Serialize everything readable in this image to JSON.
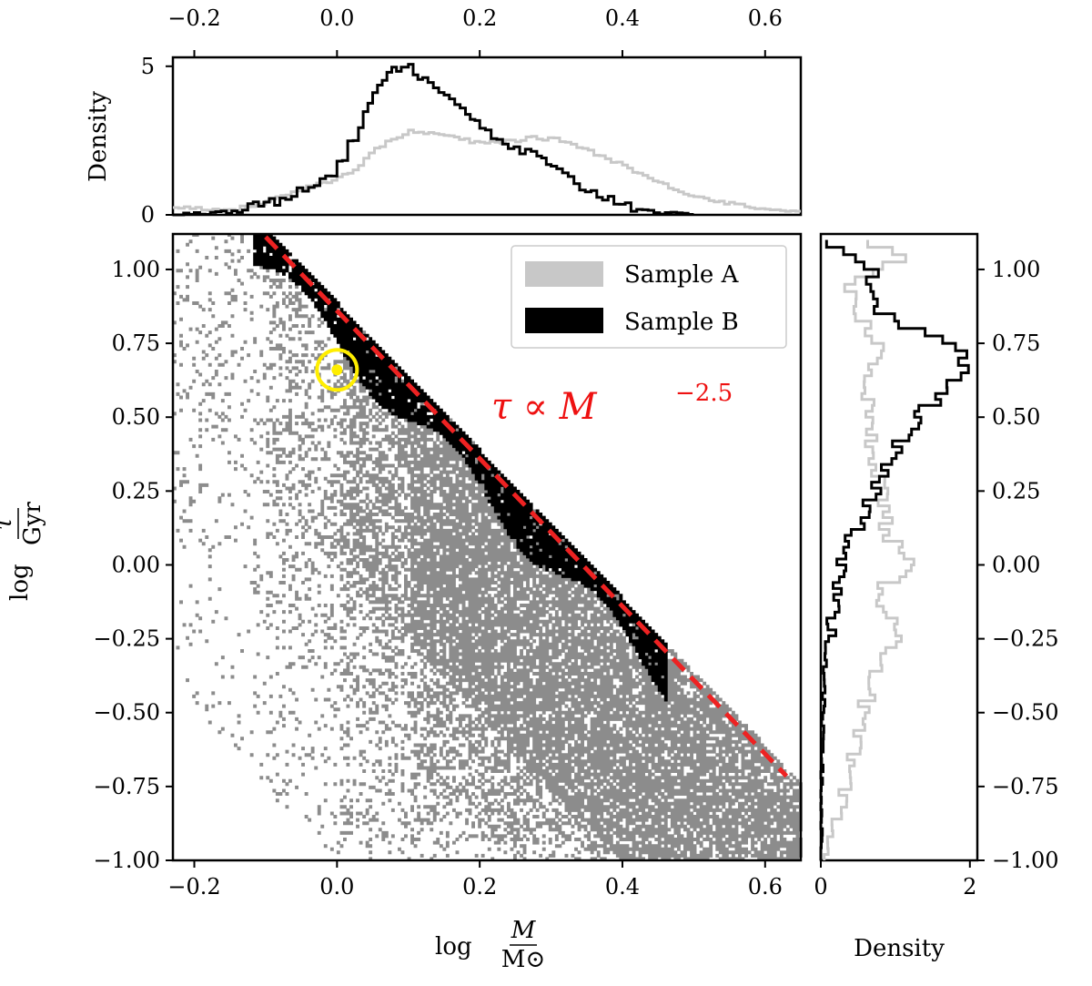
{
  "chart_data": [
    {
      "type": "heatmap",
      "panel": "main",
      "xlabel": "log M/M⊙",
      "ylabel": "log τ/Gyr",
      "xlim": [
        -0.23,
        0.65
      ],
      "ylim": [
        -1.0,
        1.12
      ],
      "xticks": [
        "−0.2",
        "0.0",
        "0.2",
        "0.4",
        "0.6"
      ],
      "xtick_values": [
        -0.2,
        0.0,
        0.2,
        0.4,
        0.6
      ],
      "yticks": [
        "−1.00",
        "−0.75",
        "−0.50",
        "−0.25",
        "0.00",
        "0.25",
        "0.50",
        "0.75",
        "1.00"
      ],
      "ytick_values": [
        -1.0,
        -0.75,
        -0.5,
        -0.25,
        0.0,
        0.25,
        0.5,
        0.75,
        1.0
      ],
      "series": [
        {
          "name": "Sample A",
          "color": "#8c8c8c",
          "legend_color": "#c8c8c8",
          "band": {
            "slope": -2.5,
            "intercept_top": 0.88,
            "spread_below": 1.0
          }
        },
        {
          "name": "Sample B",
          "color": "#000000",
          "band": {
            "slope": -2.5,
            "intercept_top": 0.86,
            "width": 0.12,
            "x_range": [
              -0.12,
              0.46
            ]
          }
        }
      ],
      "relation_line": {
        "slope": -2.5,
        "intercept": 0.86,
        "x_range": [
          -0.1,
          0.63
        ],
        "color": "#ee2222",
        "style": "dashed"
      },
      "sun_marker": {
        "x": 0.0,
        "y": 0.66,
        "color": "#ffee00"
      },
      "annotation": {
        "base": "τ  ∝  M",
        "exponent": "−2.5"
      },
      "legend": {
        "placement": "top-right",
        "entries": [
          "Sample A",
          "Sample B"
        ]
      },
      "grid": false
    },
    {
      "type": "line",
      "panel": "top-marginal",
      "ylabel": "Density",
      "xlim": [
        -0.23,
        0.65
      ],
      "ylim": [
        0,
        5.3
      ],
      "xticks": [
        "−0.2",
        "0.0",
        "0.2",
        "0.4",
        "0.6"
      ],
      "yticks": [
        "0",
        "5"
      ],
      "ytick_values": [
        0,
        5
      ],
      "series": [
        {
          "name": "Sample A",
          "color": "#c8c8c8",
          "x": [
            -0.23,
            -0.15,
            -0.1,
            -0.05,
            0.0,
            0.03,
            0.06,
            0.1,
            0.15,
            0.2,
            0.25,
            0.28,
            0.32,
            0.36,
            0.4,
            0.45,
            0.5,
            0.55,
            0.6,
            0.65
          ],
          "y": [
            0.3,
            0.15,
            0.4,
            0.9,
            1.2,
            1.6,
            2.3,
            2.8,
            2.7,
            2.4,
            2.5,
            2.6,
            2.5,
            2.1,
            1.7,
            1.1,
            0.65,
            0.4,
            0.2,
            0.1
          ]
        },
        {
          "name": "Sample B",
          "color": "#000000",
          "x": [
            -0.23,
            -0.14,
            -0.08,
            -0.04,
            0.0,
            0.03,
            0.05,
            0.07,
            0.09,
            0.1,
            0.12,
            0.15,
            0.18,
            0.2,
            0.24,
            0.28,
            0.3,
            0.34,
            0.38,
            0.42,
            0.46,
            0.5
          ],
          "y": [
            0.0,
            0.1,
            0.5,
            1.0,
            1.5,
            2.8,
            4.0,
            4.8,
            5.0,
            5.1,
            4.6,
            4.1,
            3.6,
            2.9,
            2.3,
            2.0,
            1.6,
            1.0,
            0.55,
            0.25,
            0.05,
            0.0
          ]
        }
      ]
    },
    {
      "type": "line",
      "panel": "right-marginal",
      "xlabel": "Density",
      "xlim": [
        0,
        2.1
      ],
      "ylim": [
        -1.0,
        1.12
      ],
      "xticks": [
        "0",
        "2"
      ],
      "xtick_values": [
        0,
        2
      ],
      "yticks": [
        "−1.00",
        "−0.75",
        "−0.50",
        "−0.25",
        "0.00",
        "0.25",
        "0.50",
        "0.75",
        "1.00"
      ],
      "series": [
        {
          "name": "Sample A",
          "color": "#c8c8c8",
          "y": [
            1.1,
            1.05,
            1.0,
            0.95,
            0.9,
            0.85,
            0.8,
            0.75,
            0.7,
            0.6,
            0.5,
            0.4,
            0.3,
            0.2,
            0.1,
            0.0,
            -0.1,
            -0.2,
            -0.3,
            -0.4,
            -0.5,
            -0.6,
            -0.7,
            -0.8,
            -0.9,
            -1.0
          ],
          "x": [
            0.3,
            1.3,
            0.8,
            0.35,
            0.45,
            0.5,
            0.6,
            0.8,
            0.7,
            0.65,
            0.6,
            0.7,
            0.8,
            0.85,
            0.9,
            1.2,
            0.7,
            1.1,
            0.9,
            0.7,
            0.55,
            0.45,
            0.35,
            0.25,
            0.15,
            0.05
          ]
        },
        {
          "name": "Sample B",
          "color": "#000000",
          "y": [
            1.1,
            1.05,
            1.0,
            0.95,
            0.9,
            0.85,
            0.8,
            0.75,
            0.7,
            0.65,
            0.6,
            0.5,
            0.4,
            0.3,
            0.2,
            0.1,
            0.0,
            -0.1,
            -0.2,
            -0.3,
            -0.5,
            -0.7,
            -1.0
          ],
          "x": [
            0.1,
            0.4,
            0.7,
            0.65,
            0.6,
            0.9,
            1.1,
            1.9,
            1.95,
            1.85,
            1.7,
            1.3,
            1.0,
            0.8,
            0.65,
            0.45,
            0.3,
            0.2,
            0.12,
            0.06,
            0.03,
            0.01,
            0.0
          ]
        }
      ]
    }
  ]
}
